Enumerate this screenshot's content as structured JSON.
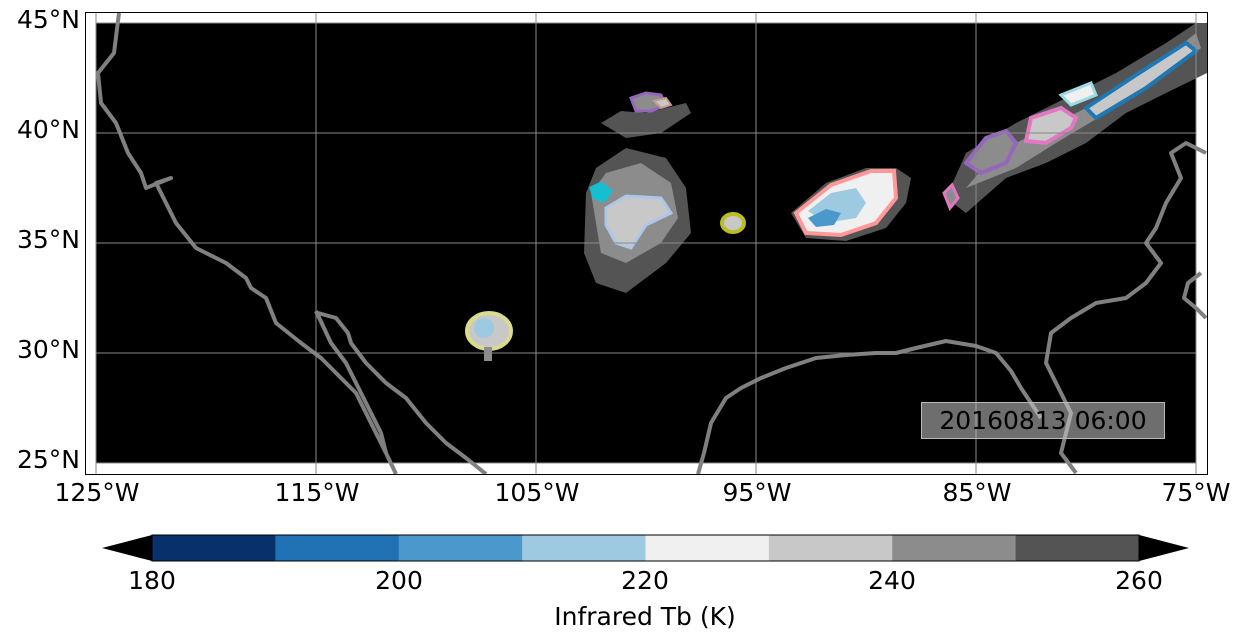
{
  "map": {
    "latitude_labels": [
      "45°N",
      "40°N",
      "35°N",
      "30°N",
      "25°N"
    ],
    "longitude_labels": [
      "125°W",
      "115°W",
      "105°W",
      "95°W",
      "85°W",
      "75°W"
    ],
    "extent": {
      "lon_min": -125,
      "lon_max": -75,
      "lat_min": 25,
      "lat_max": 45
    },
    "background_color": "#000000",
    "coastline_color": "#808080",
    "grid": true,
    "timestamp": "20160813 06:00"
  },
  "colorbar": {
    "label": "Infrared Tb (K)",
    "tick_labels": [
      "180",
      "200",
      "220",
      "240",
      "260"
    ],
    "levels": [
      180,
      190,
      200,
      210,
      220,
      230,
      240,
      250,
      260
    ],
    "colors": [
      "#08306b",
      "#2171b5",
      "#4b98cc",
      "#9ecae1",
      "#f0f0f0",
      "#c8c8c8",
      "#8c8c8c",
      "#545454"
    ],
    "extend": "both",
    "under_color": "#000000",
    "over_color": "#000000"
  },
  "storm_outline_colors": [
    "#ff9896",
    "#9467bd",
    "#e377c2",
    "#17becf",
    "#aec7e8",
    "#bcbd22",
    "#c49c94",
    "#1f77b4",
    "#9edae5"
  ]
}
